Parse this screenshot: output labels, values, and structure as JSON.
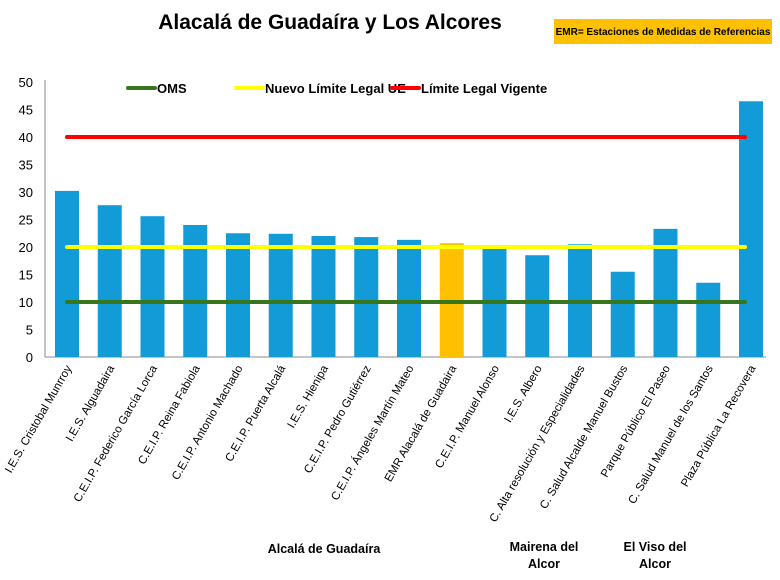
{
  "chart_data": {
    "type": "bar",
    "title": "Alacalá de Guadaíra y Los Alcores",
    "note": "EMR= Estaciones de Medidas de Referencias",
    "note_color": "#FFC000",
    "ylim": [
      0,
      50
    ],
    "yticks": [
      0,
      5,
      10,
      15,
      20,
      25,
      30,
      35,
      40,
      45,
      50
    ],
    "grid": false,
    "legend_placement": "top",
    "categories": [
      "I.E.S. Cristobal Munrroy",
      "I.E.S. Alguadaira",
      "C.E.I.P. Federico García Lorca",
      "C.E.I.P. Reina Fabiola",
      "C.E.I.P. Antonio Machado",
      "C.E.I.P. Puerta Alcalá",
      "I.E.S. Hienipa",
      "C.E.I.P. Pedro Gutiérrez",
      "C.E.I.P. Ángeles Martín Mateo",
      "EMR Alacalá de Guadaira",
      "C.E.I.P. Manuel Alonso",
      "I.E.S. Albero",
      "C. Alta resolución y Especialidades",
      "C. Salud Alcalde Manuel Bustos",
      "Parque Público El Paseo",
      "C. Salud Manuel de los Santos",
      "Plaza Pública La Recovera"
    ],
    "values": [
      30.2,
      27.6,
      25.6,
      24.0,
      22.5,
      22.4,
      22.0,
      21.8,
      21.3,
      20.7,
      19.9,
      18.5,
      20.5,
      15.5,
      23.3,
      13.5,
      46.5
    ],
    "bar_color": "#129BD6",
    "highlight_color": "#FFC000",
    "highlight_index": 9,
    "reference_lines": [
      {
        "name": "OMS",
        "value": 10,
        "color": "#38761D"
      },
      {
        "name": "Nuevo Límite Legal UE",
        "value": 20,
        "color": "#FFFF00"
      },
      {
        "name": "Límite Legal Vigente",
        "value": 40,
        "color": "#FF0000"
      }
    ],
    "groups": [
      {
        "lines": [
          "Alcalá de Guadaíra"
        ]
      },
      {
        "lines": [
          "Mairena  del",
          "Alcor"
        ]
      },
      {
        "lines": [
          "El Viso del",
          "Alcor"
        ]
      }
    ]
  }
}
